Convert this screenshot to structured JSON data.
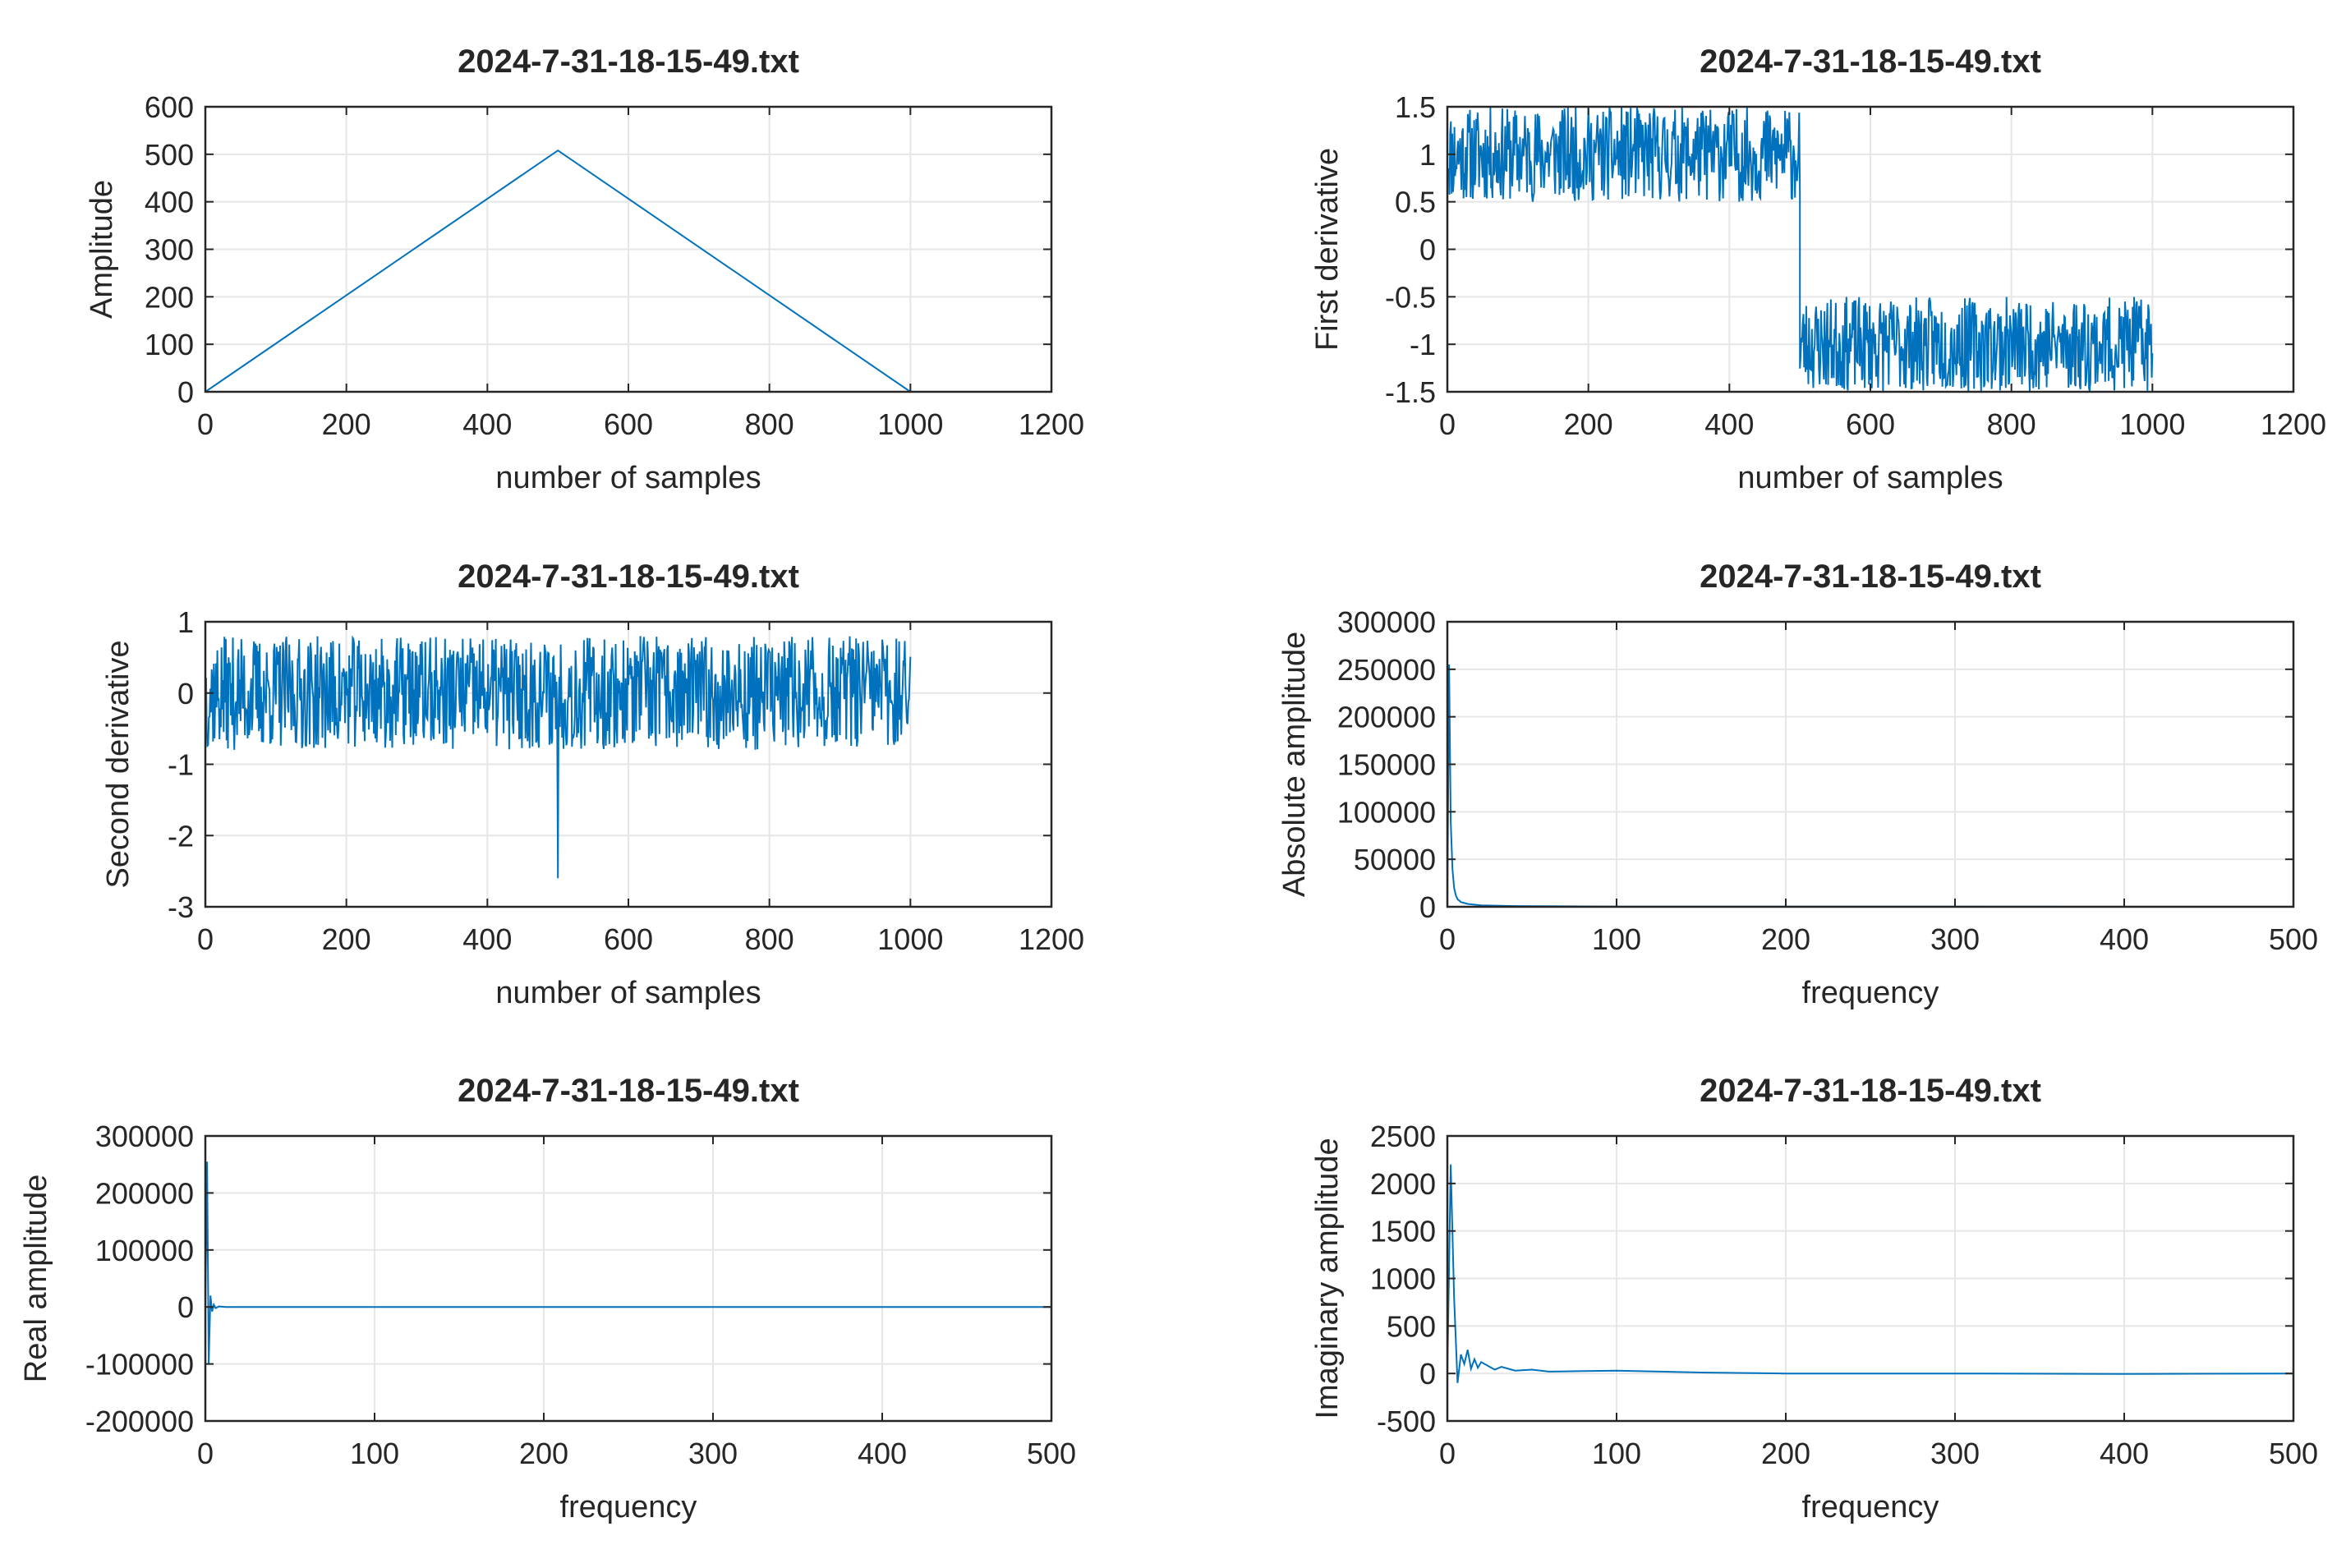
{
  "figure": {
    "background": "#ffffff",
    "line_color": "#0072bd",
    "grid_color": "#e6e6e6",
    "axis_color": "#262626"
  },
  "chart_data": [
    {
      "id": "amplitude",
      "type": "line",
      "title": "2024-7-31-18-15-49.txt",
      "xlabel": "number of samples",
      "ylabel": "Amplitude",
      "xlim": [
        0,
        1200
      ],
      "ylim": [
        0,
        600
      ],
      "xticks": [
        0,
        200,
        400,
        600,
        800,
        1000,
        1200
      ],
      "yticks": [
        0,
        100,
        200,
        300,
        400,
        500,
        600
      ],
      "xtick_labels": [
        "0",
        "200",
        "400",
        "600",
        "800",
        "1000",
        "1200"
      ],
      "ytick_labels": [
        "0",
        "100",
        "200",
        "300",
        "400",
        "500",
        "600"
      ],
      "grid": true,
      "series": [
        {
          "x": [
            0,
            500,
            1000
          ],
          "y": [
            0,
            508,
            0
          ]
        }
      ]
    },
    {
      "id": "first-derivative",
      "type": "line",
      "title": "2024-7-31-18-15-49.txt",
      "xlabel": "number of samples",
      "ylabel": "First derivative",
      "xlim": [
        0,
        1200
      ],
      "ylim": [
        -1.5,
        1.5
      ],
      "xticks": [
        0,
        200,
        400,
        600,
        800,
        1000,
        1200
      ],
      "yticks": [
        -1.5,
        -1,
        -0.5,
        0,
        0.5,
        1,
        1.5
      ],
      "xtick_labels": [
        "0",
        "200",
        "400",
        "600",
        "800",
        "1000",
        "1200"
      ],
      "ytick_labels": [
        "-1.5",
        "-1",
        "-0.5",
        "0",
        "0.5",
        "1",
        "1.5"
      ],
      "grid": true,
      "series": [
        {
          "segments": [
            {
              "x_range": [
                0,
                500
              ],
              "center": 1.0,
              "spread": 0.5,
              "clip": [
                0.5,
                1.5
              ],
              "seed": 11
            },
            {
              "x_range": [
                500,
                1000
              ],
              "center": -1.0,
              "spread": 0.5,
              "clip": [
                -1.5,
                -0.5
              ],
              "seed": 23
            }
          ],
          "n": 1000
        }
      ]
    },
    {
      "id": "second-derivative",
      "type": "line",
      "title": "2024-7-31-18-15-49.txt",
      "xlabel": "number of samples",
      "ylabel": "Second derivative",
      "xlim": [
        0,
        1200
      ],
      "ylim": [
        -3,
        1
      ],
      "xticks": [
        0,
        200,
        400,
        600,
        800,
        1000,
        1200
      ],
      "yticks": [
        -3,
        -2,
        -1,
        0,
        1
      ],
      "xtick_labels": [
        "0",
        "200",
        "400",
        "600",
        "800",
        "1000",
        "1200"
      ],
      "ytick_labels": [
        "-3",
        "-2",
        "-1",
        "0",
        "1"
      ],
      "grid": true,
      "series": [
        {
          "segments": [
            {
              "x_range": [
                0,
                1000
              ],
              "center": 0.0,
              "spread": 0.8,
              "clip": [
                -1.0,
                1.0
              ],
              "seed": 37
            }
          ],
          "spikes": [
            {
              "x": 500,
              "y": -2.6
            }
          ],
          "n": 1000
        }
      ]
    },
    {
      "id": "absolute-amplitude",
      "type": "line",
      "title": "2024-7-31-18-15-49.txt",
      "xlabel": "frequency",
      "ylabel": "Absolute amplitude",
      "xlim": [
        0,
        500
      ],
      "ylim": [
        0,
        300000
      ],
      "xticks": [
        0,
        100,
        200,
        300,
        400,
        500
      ],
      "yticks": [
        0,
        50000,
        100000,
        150000,
        200000,
        250000,
        300000
      ],
      "xtick_labels": [
        "0",
        "100",
        "200",
        "300",
        "400",
        "500"
      ],
      "ytick_labels": [
        "0",
        "50000",
        "100000",
        "150000",
        "200000",
        "250000",
        "300000"
      ],
      "grid": true,
      "series": [
        {
          "x": [
            0,
            1,
            2,
            3,
            4,
            5,
            6,
            8,
            12,
            20,
            40,
            100,
            500
          ],
          "y": [
            0,
            255000,
            90000,
            40000,
            20000,
            12000,
            8000,
            5000,
            3000,
            1500,
            800,
            300,
            100
          ]
        }
      ]
    },
    {
      "id": "real-amplitude",
      "type": "line",
      "title": "2024-7-31-18-15-49.txt",
      "xlabel": "frequency",
      "ylabel": "Real amplitude",
      "xlim": [
        0,
        500
      ],
      "ylim": [
        -200000,
        300000
      ],
      "xticks": [
        0,
        100,
        200,
        300,
        400,
        500
      ],
      "yticks": [
        -200000,
        -100000,
        0,
        100000,
        200000,
        300000
      ],
      "xtick_labels": [
        "0",
        "100",
        "200",
        "300",
        "400",
        "500"
      ],
      "ytick_labels": [
        "-200000",
        "-100000",
        "0",
        "100000",
        "200000",
        "300000"
      ],
      "grid": true,
      "series": [
        {
          "x": [
            0,
            1,
            2,
            3,
            4,
            5,
            6,
            8,
            12,
            20,
            500
          ],
          "y": [
            0,
            255000,
            -100000,
            20000,
            -8000,
            4000,
            -2000,
            1000,
            0,
            0,
            0
          ]
        }
      ]
    },
    {
      "id": "imaginary-amplitude",
      "type": "line",
      "title": "2024-7-31-18-15-49.txt",
      "xlabel": "frequency",
      "ylabel": "Imaginary amplitude",
      "xlim": [
        0,
        500
      ],
      "ylim": [
        -500,
        2500
      ],
      "xticks": [
        0,
        100,
        200,
        300,
        400,
        500
      ],
      "yticks": [
        -500,
        0,
        500,
        1000,
        1500,
        2000,
        2500
      ],
      "xtick_labels": [
        "0",
        "100",
        "200",
        "300",
        "400",
        "500"
      ],
      "ytick_labels": [
        "-500",
        "0",
        "500",
        "1000",
        "1500",
        "2000",
        "2500"
      ],
      "grid": true,
      "series": [
        {
          "x": [
            0,
            2,
            4,
            6,
            8,
            10,
            12,
            14,
            16,
            18,
            20,
            24,
            28,
            32,
            40,
            50,
            60,
            80,
            100,
            150,
            200,
            300,
            400,
            500
          ],
          "y": [
            0,
            2200,
            800,
            -100,
            200,
            100,
            250,
            50,
            150,
            60,
            120,
            80,
            40,
            70,
            30,
            40,
            20,
            25,
            30,
            10,
            0,
            0,
            -5,
            0
          ]
        }
      ]
    }
  ]
}
